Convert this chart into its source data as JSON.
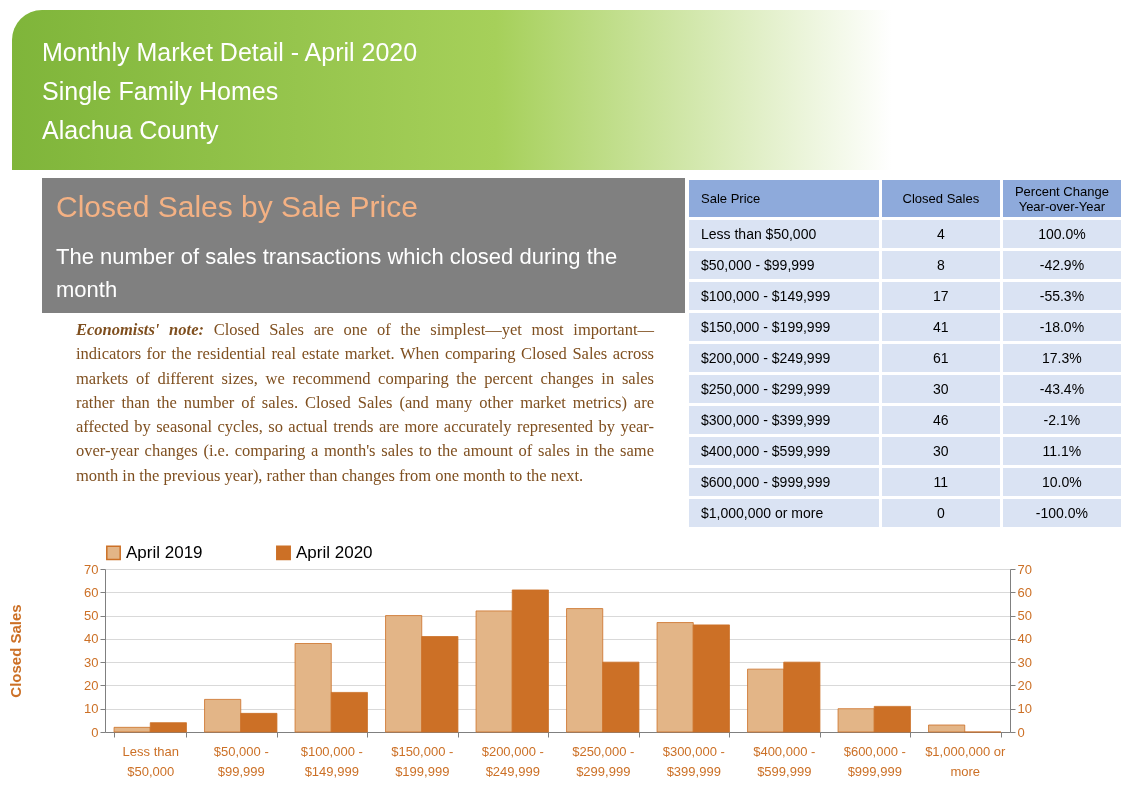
{
  "chart_data": [
    {
      "type": "other",
      "title": "Monthly Market Detail - April 2020",
      "subtitle": "Single Family Homes",
      "annotations": [
        "Alachua County",
        "Closed Sales by Sale Price",
        "The number of sales transactions which closed during the month",
        "Economists' note:",
        "Closed Sales are one of the simplest—yet most important—indicators for the residential real estate market. When comparing Closed Sales across markets of different sizes, we recommend comparing the percent changes in sales rather than the number of sales. Closed Sales (and many other market metrics) are affected by seasonal cycles, so actual trends are more accurately represented by year-over-year changes (i.e. comparing a month's sales to the amount of sales in the same month in the previous year), rather than changes from one month to the next.",
        "Sale Price",
        "Closed Sales",
        "Percent Change Year-over-Year",
        "Less than $50,000",
        "4",
        "100.0%",
        "$50,000 - $99,999",
        "8",
        "-42.9%",
        "$100,000 - $149,999",
        "17",
        "-55.3%",
        "$150,000 - $199,999",
        "41",
        "-18.0%",
        "$200,000 - $249,999",
        "61",
        "17.3%",
        "$250,000 - $299,999",
        "30",
        "-43.4%",
        "$300,000 - $399,999",
        "46",
        "-2.1%",
        "$400,000 - $599,999",
        "30",
        "11.1%",
        "$600,000 - $999,999",
        "11",
        "10.0%",
        "$1,000,000 or more",
        "0",
        "-100.0%"
      ]
    },
    {
      "type": "bar",
      "ylabel": "Closed Sales",
      "categories": [
        "Less than $50,000",
        "$50,000 - $99,999",
        "$100,000 - $149,999",
        "$150,000 - $199,999",
        "$200,000 - $249,999",
        "$250,000 - $299,999",
        "$300,000 - $399,999",
        "$400,000 - $599,999",
        "$600,000 - $999,999",
        "$1,000,000 or more"
      ],
      "series": [
        {
          "name": "April 2019",
          "color": "#e3b587",
          "values": [
            2,
            14,
            38,
            50,
            52,
            53,
            47,
            27,
            10,
            3
          ]
        },
        {
          "name": "April 2020",
          "color": "#cc7026",
          "values": [
            4,
            8,
            17,
            41,
            61,
            30,
            46,
            30,
            11,
            0
          ]
        }
      ],
      "ylim": [
        0,
        70
      ],
      "yticks": [
        0,
        10,
        20,
        30,
        40,
        50,
        60,
        70
      ],
      "y2lim": [
        0,
        70
      ],
      "y2ticks": [
        0,
        10,
        20,
        30,
        40,
        50,
        60,
        70
      ],
      "grid": "y",
      "legend": "top"
    }
  ]
}
